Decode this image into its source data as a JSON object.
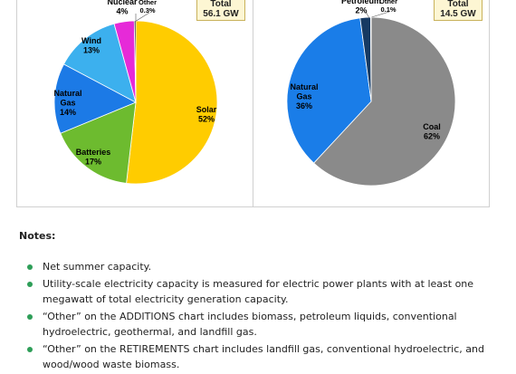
{
  "chart_data": [
    {
      "type": "pie",
      "total_label": [
        "Total",
        "56.1 GW"
      ],
      "slices": [
        {
          "name": "Solar",
          "value": 52,
          "label": "52%",
          "color": "#ffcc00"
        },
        {
          "name": "Batteries",
          "value": 17,
          "label": "17%",
          "color": "#6dbb2f"
        },
        {
          "name": "Natural Gas",
          "value": 14,
          "label": "14%",
          "color": "#1c7ae6"
        },
        {
          "name": "Wind",
          "value": 13,
          "label": "13%",
          "color": "#3cb0ee"
        },
        {
          "name": "Nuclear",
          "value": 4,
          "label": "4%",
          "color": "#e62ad8"
        },
        {
          "name": "Other",
          "value": 0.3,
          "label": "0.3%",
          "color": "#111111"
        }
      ]
    },
    {
      "type": "pie",
      "total_label": [
        "Total",
        "14.5 GW"
      ],
      "slices": [
        {
          "name": "Coal",
          "value": 62,
          "label": "62%",
          "color": "#8a8a8a"
        },
        {
          "name": "Natural Gas",
          "value": 36,
          "label": "36%",
          "color": "#1a7de8"
        },
        {
          "name": "Petroleum",
          "value": 2,
          "label": "2%",
          "color": "#163a63"
        },
        {
          "name": "Other",
          "value": 0.1,
          "label": "0.1%",
          "color": "#111111"
        }
      ]
    }
  ],
  "notes": {
    "title": "Notes:",
    "items": [
      "Net summer capacity.",
      "Utility-scale electricity capacity is measured for electric power plants with at least one megawatt of total electricity generation capacity.",
      "“Other” on the ADDITIONS chart includes biomass, petroleum liquids, conventional hydroelectric, geothermal, and landfill gas.",
      "“Other” on the RETIREMENTS chart includes landfill gas, conventional hydroelectric, and wood/wood waste biomass."
    ]
  }
}
